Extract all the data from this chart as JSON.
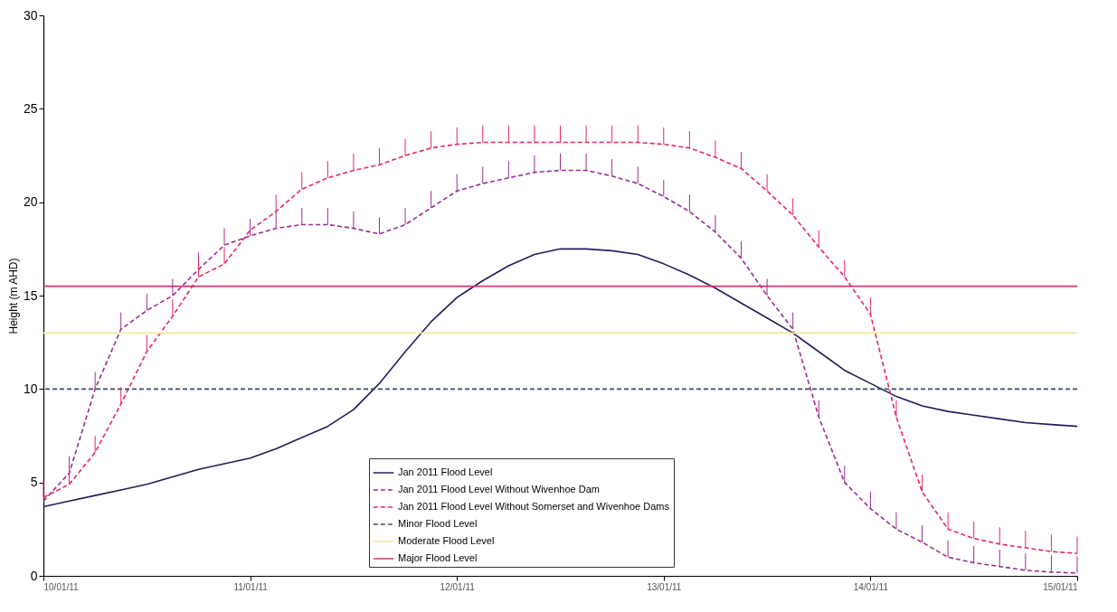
{
  "chart_data": {
    "type": "line",
    "ylabel": "Height (m AHD)",
    "x": [
      "2011-01-10T00:00",
      "2011-01-10T03:00",
      "2011-01-10T06:00",
      "2011-01-10T09:00",
      "2011-01-10T12:00",
      "2011-01-10T15:00",
      "2011-01-10T18:00",
      "2011-01-10T21:00",
      "2011-01-11T00:00",
      "2011-01-11T03:00",
      "2011-01-11T06:00",
      "2011-01-11T09:00",
      "2011-01-11T12:00",
      "2011-01-11T15:00",
      "2011-01-11T18:00",
      "2011-01-11T21:00",
      "2011-01-12T00:00",
      "2011-01-12T03:00",
      "2011-01-12T06:00",
      "2011-01-12T09:00",
      "2011-01-12T12:00",
      "2011-01-12T15:00",
      "2011-01-12T18:00",
      "2011-01-12T21:00",
      "2011-01-13T00:00",
      "2011-01-13T03:00",
      "2011-01-13T06:00",
      "2011-01-13T09:00",
      "2011-01-13T12:00",
      "2011-01-13T15:00",
      "2011-01-13T18:00",
      "2011-01-13T21:00",
      "2011-01-14T00:00",
      "2011-01-14T03:00",
      "2011-01-14T06:00",
      "2011-01-14T09:00",
      "2011-01-14T12:00",
      "2011-01-14T15:00",
      "2011-01-14T18:00",
      "2011-01-14T21:00",
      "2011-01-15T00:00"
    ],
    "series": [
      {
        "name": "Jan 2011 Flood Level",
        "color": "#1f1f5c",
        "line_style": "solid",
        "values": [
          3.7,
          4.0,
          4.3,
          4.6,
          4.9,
          5.3,
          5.7,
          6.0,
          6.3,
          6.8,
          7.4,
          8.0,
          8.9,
          10.3,
          12.0,
          13.6,
          14.9,
          15.8,
          16.6,
          17.2,
          17.5,
          17.5,
          17.4,
          17.2,
          16.7,
          16.1,
          15.4,
          14.6,
          13.8,
          13.0,
          12.0,
          11.0,
          10.3,
          9.6,
          9.1,
          8.8,
          8.6,
          8.4,
          8.2,
          8.1,
          8.0
        ]
      },
      {
        "name": "Jan 2011 Flood Level Without Wivenhoe Dam",
        "color": "#9b2d8f",
        "line_style": "dashed",
        "values": [
          4.0,
          5.5,
          10.0,
          13.2,
          14.2,
          15.0,
          16.4,
          17.7,
          18.2,
          18.6,
          18.8,
          18.8,
          18.6,
          18.3,
          18.8,
          19.7,
          20.6,
          21.0,
          21.3,
          21.6,
          21.7,
          21.7,
          21.4,
          21.0,
          20.3,
          19.5,
          18.4,
          17.0,
          15.0,
          13.2,
          8.5,
          5.0,
          3.6,
          2.5,
          1.8,
          1.0,
          0.7,
          0.5,
          0.3,
          0.2,
          0.15
        ],
        "errors": [
          null,
          [
            5.5,
            6.4
          ],
          [
            10.0,
            10.9
          ],
          [
            13.2,
            14.1
          ],
          [
            14.2,
            15.1
          ],
          [
            15.0,
            15.9
          ],
          [
            16.4,
            17.3
          ],
          [
            17.7,
            18.6
          ],
          [
            18.2,
            19.1
          ],
          [
            18.6,
            19.5
          ],
          [
            18.8,
            19.7
          ],
          [
            18.8,
            19.7
          ],
          [
            18.6,
            19.5
          ],
          [
            18.3,
            19.2
          ],
          [
            18.8,
            19.7
          ],
          [
            19.7,
            20.6
          ],
          [
            20.6,
            21.5
          ],
          [
            21.0,
            21.9
          ],
          [
            21.3,
            22.2
          ],
          [
            21.6,
            22.5
          ],
          [
            21.7,
            22.6
          ],
          [
            21.7,
            22.6
          ],
          [
            21.4,
            22.3
          ],
          [
            21.0,
            21.9
          ],
          [
            20.3,
            21.2
          ],
          [
            19.5,
            20.4
          ],
          [
            18.4,
            19.3
          ],
          [
            17.0,
            17.9
          ],
          [
            15.0,
            15.9
          ],
          [
            13.2,
            14.1
          ],
          [
            8.5,
            9.4
          ],
          [
            5.0,
            5.9
          ],
          [
            3.6,
            4.5
          ],
          [
            2.5,
            3.4
          ],
          [
            1.8,
            2.7
          ],
          [
            1.0,
            1.9
          ],
          [
            0.7,
            1.6
          ],
          [
            0.5,
            1.4
          ],
          [
            0.3,
            1.2
          ],
          [
            0.2,
            1.1
          ],
          [
            0.15,
            1.05
          ]
        ]
      },
      {
        "name": "Jan 2011 Flood Level Without Somerset and Wivenhoe Dams",
        "color": "#e8285a",
        "line_style": "dashed",
        "values": [
          4.2,
          4.9,
          6.6,
          9.2,
          12.0,
          13.9,
          16.0,
          16.7,
          18.5,
          19.5,
          20.7,
          21.3,
          21.7,
          22.0,
          22.5,
          22.9,
          23.1,
          23.2,
          23.2,
          23.2,
          23.2,
          23.2,
          23.2,
          23.2,
          23.1,
          22.9,
          22.4,
          21.8,
          20.6,
          19.3,
          17.6,
          16.0,
          14.0,
          8.5,
          4.5,
          2.5,
          2.0,
          1.7,
          1.5,
          1.3,
          1.2
        ],
        "errors": [
          [
            4.2,
            5.1
          ],
          [
            4.9,
            5.8
          ],
          [
            6.6,
            7.5
          ],
          [
            9.2,
            10.1
          ],
          [
            12.0,
            12.9
          ],
          [
            13.9,
            14.8
          ],
          [
            16.0,
            16.9
          ],
          [
            16.7,
            17.6
          ],
          null,
          [
            19.5,
            20.4
          ],
          [
            20.7,
            21.6
          ],
          [
            21.3,
            22.2
          ],
          [
            21.7,
            22.6
          ],
          [
            22.0,
            22.9
          ],
          [
            22.5,
            23.4
          ],
          [
            22.9,
            23.8
          ],
          [
            23.1,
            24.0
          ],
          [
            23.2,
            24.1
          ],
          [
            23.2,
            24.1
          ],
          [
            23.2,
            24.1
          ],
          [
            23.2,
            24.1
          ],
          [
            23.2,
            24.1
          ],
          [
            23.2,
            24.1
          ],
          [
            23.2,
            24.1
          ],
          [
            23.1,
            24.0
          ],
          [
            22.9,
            23.8
          ],
          [
            22.4,
            23.3
          ],
          [
            21.8,
            22.7
          ],
          [
            20.6,
            21.5
          ],
          [
            19.3,
            20.2
          ],
          [
            17.6,
            18.5
          ],
          [
            16.0,
            16.9
          ],
          [
            14.0,
            14.9
          ],
          [
            8.5,
            9.4
          ],
          [
            4.5,
            5.4
          ],
          [
            2.5,
            3.4
          ],
          [
            2.0,
            2.9
          ],
          [
            1.7,
            2.6
          ],
          [
            1.5,
            2.4
          ],
          [
            1.3,
            2.2
          ],
          [
            1.2,
            2.1
          ]
        ]
      }
    ],
    "ref_lines": [
      {
        "axis": "y",
        "value": 10,
        "label": "Minor Flood Level",
        "color": "#3b4b6b",
        "line_style": "dashed"
      },
      {
        "axis": "y",
        "value": 13,
        "label": "Moderate Flood Level",
        "color": "#f2ea9c",
        "line_style": "solid"
      },
      {
        "axis": "y",
        "value": 15.5,
        "label": "Major Flood Level",
        "color": "#e0336a",
        "line_style": "solid"
      }
    ],
    "xlim": [
      "2011-01-10",
      "2011-01-15"
    ],
    "xticks": [
      {
        "value": "2011-01-10",
        "label": "10/01/11"
      },
      {
        "value": "2011-01-11",
        "label": "11/01/11"
      },
      {
        "value": "2011-01-12",
        "label": "12/01/11"
      },
      {
        "value": "2011-01-13",
        "label": "13/01/11"
      },
      {
        "value": "2011-01-14",
        "label": "14/01/11"
      },
      {
        "value": "2011-01-15",
        "label": "15/01/11"
      }
    ],
    "ylim": [
      0,
      30
    ],
    "yticks": [
      0,
      5,
      10,
      15,
      20,
      25,
      30
    ],
    "grid": false,
    "legend": "bottom",
    "marker": "none"
  }
}
